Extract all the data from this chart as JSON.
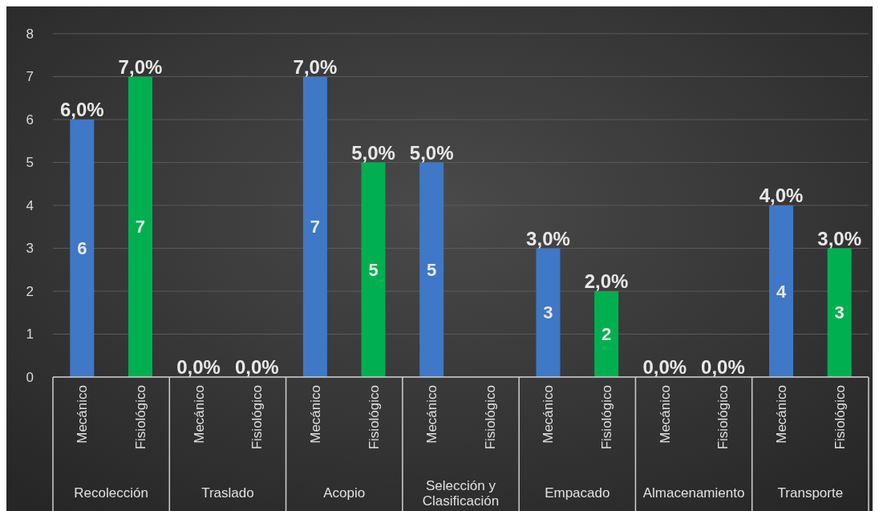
{
  "chart_data": {
    "type": "bar",
    "categories": [
      "Recolección",
      "Traslado",
      "Acopio",
      "Selección y Clasificación",
      "Empacado",
      "Almacenamiento",
      "Transporte"
    ],
    "series": [
      {
        "name": "Mecánico",
        "color": "#3f78c6",
        "values": [
          6,
          0,
          7,
          5,
          3,
          0,
          4
        ],
        "value_labels": [
          "6",
          null,
          "7",
          "5",
          "3",
          null,
          "4"
        ]
      },
      {
        "name": "Fisiológico",
        "color": "#00b050",
        "values": [
          7,
          0,
          5,
          null,
          2,
          0,
          3
        ],
        "value_labels": [
          "7",
          null,
          "5",
          null,
          "2",
          null,
          "3"
        ]
      }
    ],
    "annotations": [
      "6,0%",
      "7,0%",
      "0,0%",
      "0,0%",
      "7,0%",
      "5,0%",
      "5,0%",
      "3,0%",
      "2,0%",
      "0,0%",
      "0,0%",
      "4,0%",
      "3,0%"
    ],
    "ylim": [
      0,
      8
    ],
    "yticks": [
      0,
      1,
      2,
      3,
      4,
      5,
      6,
      7,
      8
    ],
    "grid": "y"
  }
}
